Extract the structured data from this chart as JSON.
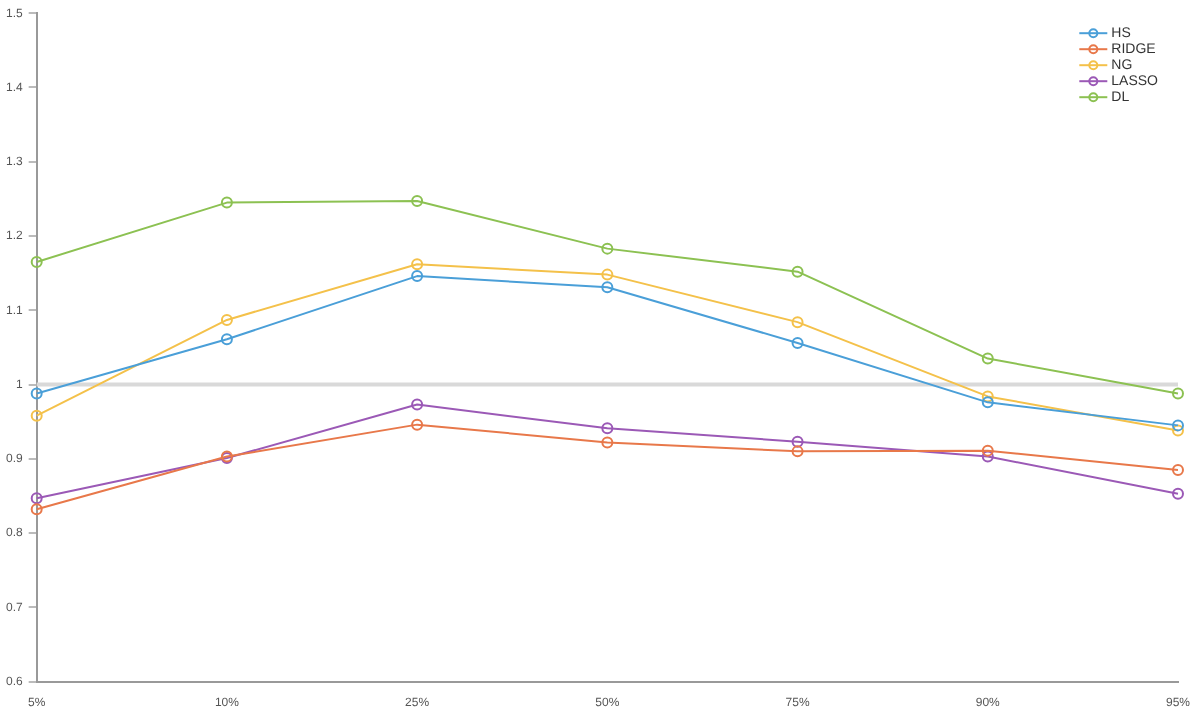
{
  "chart_data": {
    "type": "line",
    "categories": [
      "5%",
      "10%",
      "25%",
      "50%",
      "75%",
      "90%",
      "95%"
    ],
    "series": [
      {
        "name": "HS",
        "color": "#4a9fd8",
        "values": [
          0.988,
          1.061,
          1.146,
          1.131,
          1.056,
          0.976,
          0.945
        ]
      },
      {
        "name": "RIDGE",
        "color": "#e8784a",
        "values": [
          0.832,
          0.903,
          0.946,
          0.922,
          0.91,
          0.911,
          0.885
        ]
      },
      {
        "name": "NG",
        "color": "#f4c14a",
        "values": [
          0.958,
          1.087,
          1.162,
          1.148,
          1.084,
          0.984,
          0.938
        ]
      },
      {
        "name": "LASSO",
        "color": "#9b59b6",
        "values": [
          0.847,
          0.901,
          0.973,
          0.941,
          0.923,
          0.903,
          0.853
        ]
      },
      {
        "name": "DL",
        "color": "#8cc152",
        "values": [
          1.165,
          1.245,
          1.247,
          1.183,
          1.152,
          1.035,
          0.988
        ]
      }
    ],
    "ylim": [
      0.6,
      1.5
    ],
    "yticks": [
      0.6,
      0.7,
      0.8,
      0.9,
      1,
      1.1,
      1.2,
      1.3,
      1.4,
      1.5
    ],
    "ref_lines": [
      {
        "axis": "y",
        "value": 1,
        "color": "#d9d9d9"
      }
    ],
    "grid": false,
    "legend": "top right",
    "marker": "circle",
    "line_style": "solid"
  }
}
